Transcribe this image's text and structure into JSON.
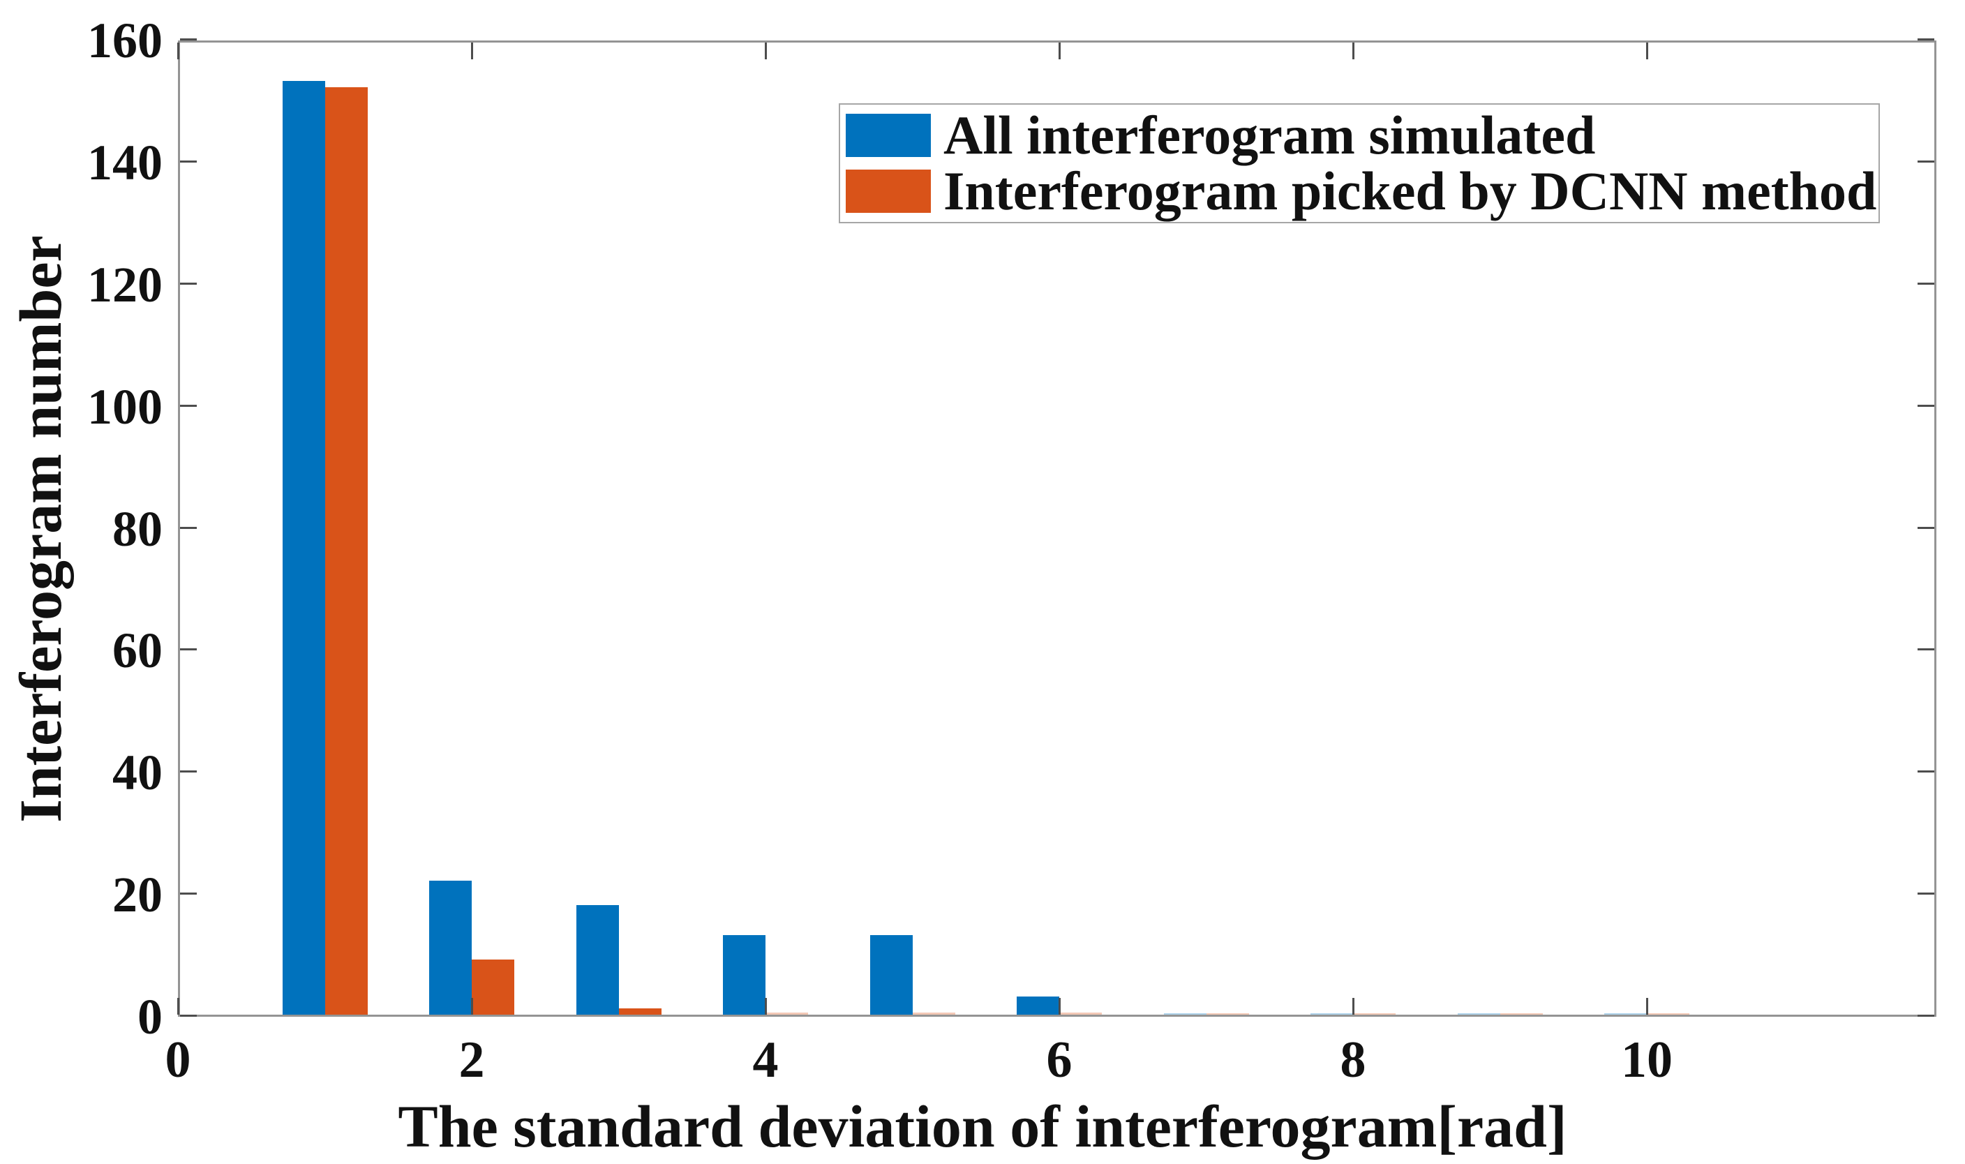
{
  "figure": {
    "background_color": "#ffffff",
    "frame_color": "#949494",
    "tick_color": "#4d4d4d",
    "text_color": "#111111"
  },
  "axes": {
    "xlabel": "The standard deviation of interferogram[rad]",
    "ylabel": "Interferogram number",
    "x_tick_labels": [
      "0",
      "2",
      "4",
      "6",
      "8",
      "10"
    ],
    "x_tick_values": [
      0,
      2,
      4,
      6,
      8,
      10
    ],
    "y_tick_labels": [
      "0",
      "20",
      "40",
      "60",
      "80",
      "100",
      "120",
      "140",
      "160"
    ],
    "y_tick_values": [
      0,
      20,
      40,
      60,
      80,
      100,
      120,
      140,
      160
    ]
  },
  "legend": {
    "items": [
      {
        "label": "All interferogram simulated",
        "color": "#0072BD",
        "swatch": "blue-swatch"
      },
      {
        "label": "Interferogram picked by DCNN method",
        "color": "#D95319",
        "swatch": "orange-swatch"
      }
    ]
  },
  "chart_data": {
    "type": "bar",
    "title": "",
    "xlabel": "The standard deviation of interferogram[rad]",
    "ylabel": "Interferogram number",
    "categories": [
      1,
      2,
      3,
      4,
      5,
      6,
      7,
      8,
      9,
      10
    ],
    "series": [
      {
        "name": "All interferogram simulated",
        "color": "#0072BD",
        "values": [
          153,
          22,
          18,
          13,
          13,
          3,
          0.2,
          0.2,
          0.2,
          0.2
        ]
      },
      {
        "name": "Interferogram picked by DCNN method",
        "color": "#D95319",
        "values": [
          152,
          9,
          1,
          0.4,
          0.4,
          0.3,
          0.2,
          0.2,
          0.2,
          0.2
        ]
      }
    ],
    "xlim": [
      0,
      12
    ],
    "ylim": [
      0,
      160
    ],
    "grid": false,
    "legend_position": "upper right",
    "bar_layout": "grouped"
  }
}
